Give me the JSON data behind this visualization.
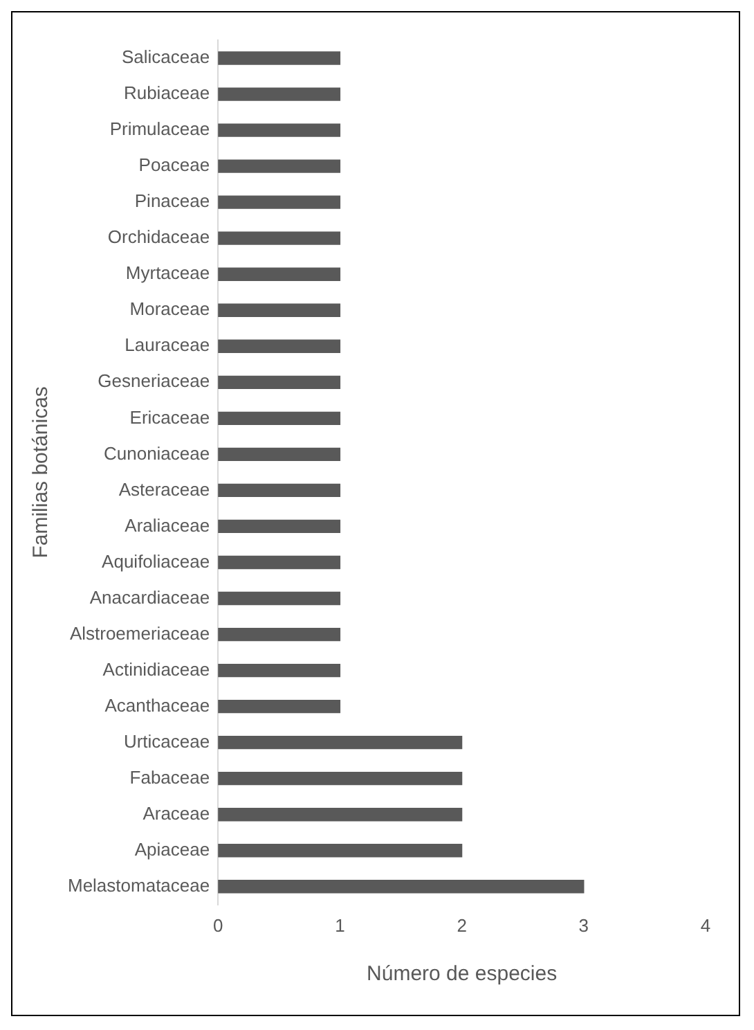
{
  "chart_data": {
    "type": "bar",
    "orientation": "horizontal",
    "xlabel": "Número de especies",
    "ylabel": "Familias botánicas",
    "categories": [
      "Salicaceae",
      "Rubiaceae",
      "Primulaceae",
      "Poaceae",
      "Pinaceae",
      "Orchidaceae",
      "Myrtaceae",
      "Moraceae",
      "Lauraceae",
      "Gesneriaceae",
      "Ericaceae",
      "Cunoniaceae",
      "Asteraceae",
      "Araliaceae",
      "Aquifoliaceae",
      "Anacardiaceae",
      "Alstroemeriaceae",
      "Actinidiaceae",
      "Acanthaceae",
      "Urticaceae",
      "Fabaceae",
      "Araceae",
      "Apiaceae",
      "Melastomataceae"
    ],
    "values": [
      1,
      1,
      1,
      1,
      1,
      1,
      1,
      1,
      1,
      1,
      1,
      1,
      1,
      1,
      1,
      1,
      1,
      1,
      1,
      2,
      2,
      2,
      2,
      3
    ],
    "color": "#595959",
    "xlim": [
      0,
      4
    ],
    "xticks": [
      0,
      1,
      2,
      3,
      4
    ],
    "grid": false,
    "legend": false
  }
}
